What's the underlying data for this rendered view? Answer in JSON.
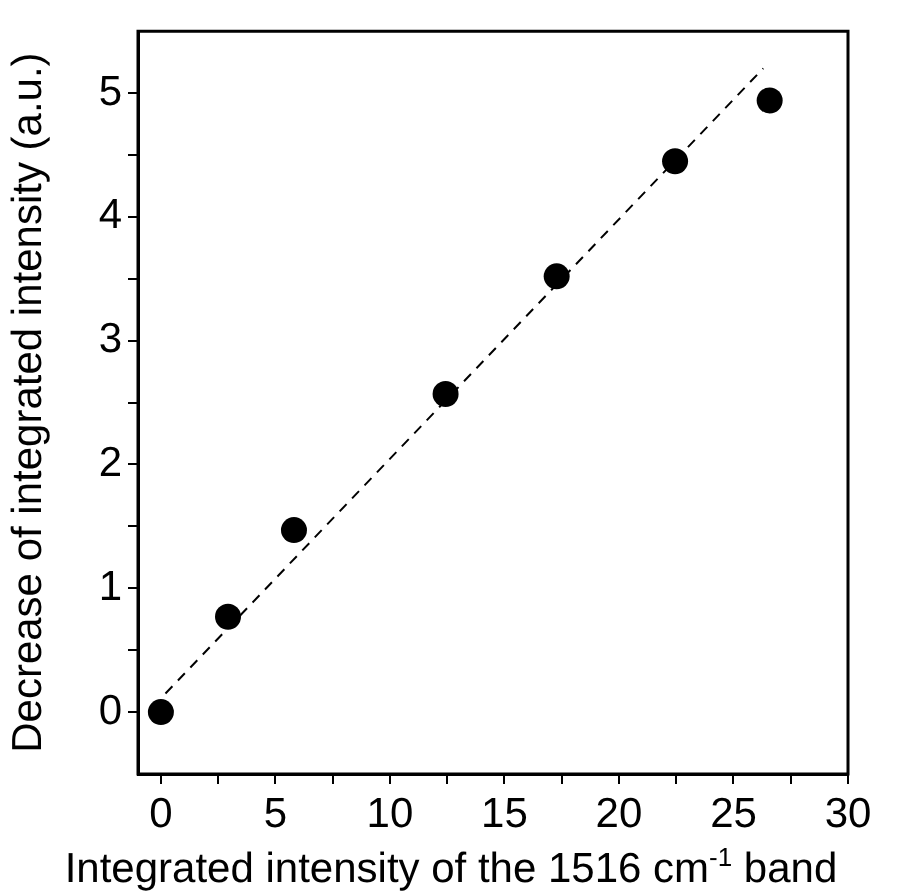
{
  "chart_data": {
    "type": "scatter",
    "xlabel": "Integrated intensity of the 1516 cm$^{-1}$ band",
    "ylabel": "Decrease of integrated intensity (a.u.)",
    "xlim": [
      -1,
      30
    ],
    "ylim": [
      -0.5,
      5.5
    ],
    "xticks": [
      0,
      {
        "value": 2.5,
        "label": null
      },
      5,
      {
        "value": 7.5,
        "label": null
      },
      10,
      {
        "value": 12.5,
        "label": null
      },
      15,
      {
        "value": 17.5,
        "label": null
      },
      20,
      {
        "value": 22.5,
        "label": null
      },
      25,
      {
        "value": 27.5,
        "label": null
      },
      30
    ],
    "yticks": [
      0,
      {
        "value": 0.5,
        "label": null
      },
      1,
      {
        "value": 1.5,
        "label": null
      },
      2,
      {
        "value": 2.5,
        "label": null
      },
      3,
      {
        "value": 3.5,
        "label": null
      },
      4,
      {
        "value": 4.5,
        "label": null
      },
      5
    ],
    "grid": false,
    "legend": false,
    "series": [
      {
        "color": "#000000",
        "marker": "circle",
        "x": [
          0,
          2.93,
          5.81,
          12.43,
          17.28,
          22.45,
          26.58
        ],
        "values": [
          0,
          0.77,
          1.47,
          2.57,
          3.52,
          4.45,
          4.94
        ]
      },
      {
        "type": "line",
        "color": "#000000",
        "marker": "none",
        "line_style": "dashed",
        "x": [
          0.2,
          26.3
        ],
        "values": [
          0.15,
          5.2
        ]
      }
    ]
  }
}
